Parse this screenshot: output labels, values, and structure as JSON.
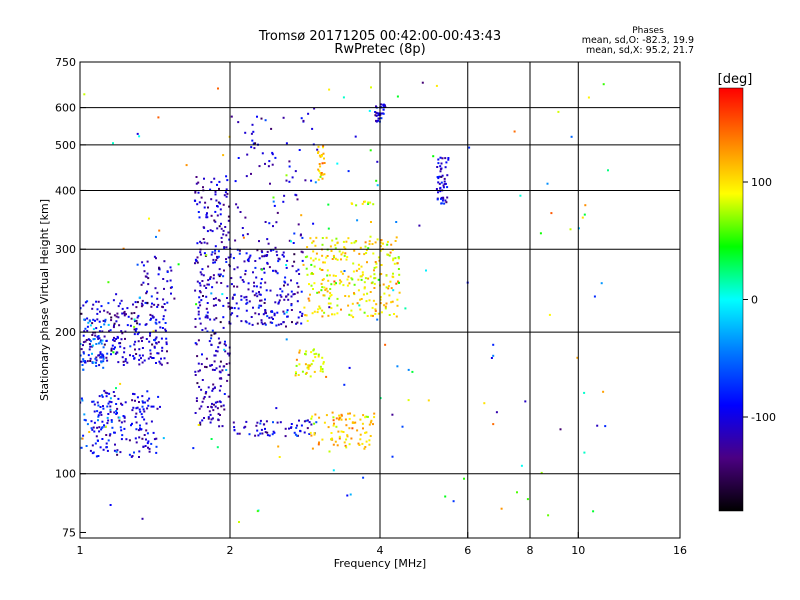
{
  "chart_data": {
    "type": "scatter",
    "title": "Tromsø 20171205 00:42:00-00:43:43",
    "subtitle": "RwPretec (8p)",
    "xlabel": "Frequency [MHz]",
    "ylabel": "Stationary phase Virtual Height [km]",
    "x_scale": "log",
    "y_scale": "log",
    "xlim": [
      1,
      16
    ],
    "ylim": [
      73,
      750
    ],
    "x_ticks": [
      {
        "value": 1,
        "label": "1"
      },
      {
        "value": 2,
        "label": "2"
      },
      {
        "value": 4,
        "label": "4"
      },
      {
        "value": 6,
        "label": "6"
      },
      {
        "value": 8,
        "label": "8"
      },
      {
        "value": 10,
        "label": "10"
      },
      {
        "value": 16,
        "label": "16"
      }
    ],
    "y_ticks": [
      {
        "value": 75,
        "label": "75"
      },
      {
        "value": 100,
        "label": "100"
      },
      {
        "value": 200,
        "label": "200"
      },
      {
        "value": 300,
        "label": "300"
      },
      {
        "value": 400,
        "label": "400"
      },
      {
        "value": 500,
        "label": "500"
      },
      {
        "value": 600,
        "label": "600"
      },
      {
        "value": 750,
        "label": "750"
      }
    ],
    "x_gridlines": [
      2,
      4,
      6,
      8,
      10
    ],
    "y_gridlines": [
      100,
      200,
      300,
      400,
      500,
      600
    ],
    "grid": true,
    "stats": {
      "heading": "Phases",
      "line_o": "mean, sd,O: -82.3, 19.9",
      "line_x": "mean, sd,X:  95.2, 21.7"
    },
    "colorbar": {
      "label": "[deg]",
      "range": [
        -180,
        180
      ],
      "ticks": [
        {
          "value": 100,
          "label": "100"
        },
        {
          "value": 0,
          "label": "0"
        },
        {
          "value": -100,
          "label": "-100"
        }
      ],
      "colors": [
        "#000000",
        "#4b0082",
        "#0000ff",
        "#0078ff",
        "#00ffff",
        "#00ff00",
        "#ffff00",
        "#ff8000",
        "#ff0000"
      ]
    },
    "clusters": [
      {
        "fmin": 1.0,
        "fmax": 1.5,
        "hmin": 170,
        "hmax": 235,
        "phase": -110,
        "n": 260
      },
      {
        "fmin": 1.0,
        "fmax": 1.15,
        "hmin": 165,
        "hmax": 215,
        "phase": -50,
        "n": 40
      },
      {
        "fmin": 1.05,
        "fmax": 1.45,
        "hmin": 108,
        "hmax": 150,
        "phase": -100,
        "n": 160
      },
      {
        "fmin": 1.0,
        "fmax": 1.2,
        "hmin": 110,
        "hmax": 150,
        "phase": -60,
        "n": 30
      },
      {
        "fmin": 1.3,
        "fmax": 1.55,
        "hmin": 235,
        "hmax": 290,
        "phase": -110,
        "n": 40
      },
      {
        "fmin": 1.7,
        "fmax": 2.0,
        "hmin": 125,
        "hmax": 430,
        "phase": -115,
        "n": 300
      },
      {
        "fmin": 2.0,
        "fmax": 2.8,
        "hmin": 205,
        "hmax": 300,
        "phase": -110,
        "n": 200
      },
      {
        "fmin": 2.0,
        "fmax": 3.0,
        "hmin": 120,
        "hmax": 130,
        "phase": -100,
        "n": 60
      },
      {
        "fmin": 2.0,
        "fmax": 3.0,
        "hmin": 300,
        "hmax": 600,
        "phase": -110,
        "n": 80
      },
      {
        "fmin": 2.8,
        "fmax": 4.4,
        "hmin": 215,
        "hmax": 320,
        "phase": 100,
        "n": 280
      },
      {
        "fmin": 2.7,
        "fmax": 3.1,
        "hmin": 160,
        "hmax": 185,
        "phase": 90,
        "n": 40
      },
      {
        "fmin": 2.9,
        "fmax": 3.9,
        "hmin": 113,
        "hmax": 135,
        "phase": 110,
        "n": 90
      },
      {
        "fmin": 3.0,
        "fmax": 3.1,
        "hmin": 420,
        "hmax": 500,
        "phase": 100,
        "n": 25
      },
      {
        "fmin": 3.9,
        "fmax": 4.1,
        "hmin": 560,
        "hmax": 610,
        "phase": -100,
        "n": 35
      },
      {
        "fmin": 5.2,
        "fmax": 5.5,
        "hmin": 375,
        "hmax": 470,
        "phase": -100,
        "n": 50
      },
      {
        "fmin": 3.5,
        "fmax": 3.9,
        "hmin": 370,
        "hmax": 380,
        "phase": 85,
        "n": 10
      },
      {
        "fmin": 1.0,
        "fmax": 11.5,
        "hmin": 78,
        "hmax": 680,
        "phase": 0,
        "n": 160
      }
    ]
  }
}
